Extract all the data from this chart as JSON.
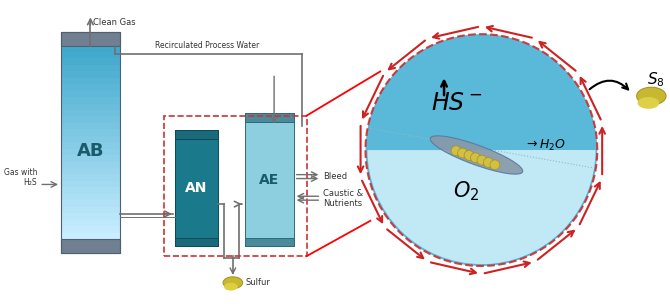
{
  "bg_color": "#ffffff",
  "ab_label": "AB",
  "an_label": "AN",
  "ae_label": "AE",
  "clean_gas_label": "Clean Gas",
  "gas_with_h2s_label": "Gas with\nH₂S",
  "recirculated_label": "Recirculated Process Water",
  "bleed_label": "Bleed",
  "caustic_label": "Caustic &\nNutrients",
  "sulfur_label": "Sulfur",
  "hs_label": "HS⁻",
  "h2o_label": "→H₂O",
  "o2_label": "O₂",
  "s8_label": "S₈",
  "ab_cap_color": "#708090",
  "ab_body_top": "#4ab0cc",
  "ab_body_bot": "#b8e8f5",
  "an_cap_color": "#1a6a7a",
  "an_body_color": "#1a7a8c",
  "ae_cap_color": "#4a8a9a",
  "ae_body_color": "#8ecfdf",
  "circle_dark": "#5ab8d8",
  "circle_light": "#c0e8f5",
  "red_color": "#cc2222",
  "dashed_box_color": "#cc3333",
  "pipe_color": "#707070",
  "text_color": "#333333"
}
